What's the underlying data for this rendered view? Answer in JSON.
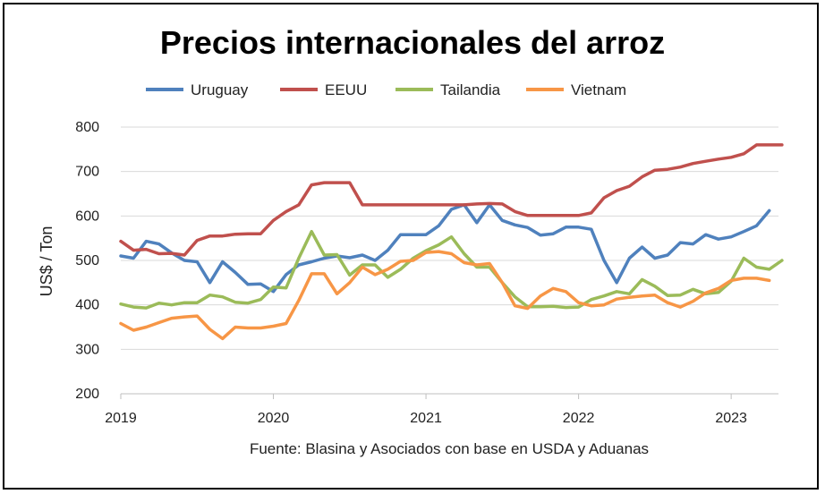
{
  "chart_data": {
    "type": "line",
    "title": "Precios internacionales del arroz",
    "ylabel": "US$ / Ton",
    "xlabel": "",
    "source_note": "Fuente: Blasina y Asociados con base en USDA y Aduanas",
    "ylim": [
      200,
      800
    ],
    "yticks": [
      200,
      300,
      400,
      500,
      600,
      700,
      800
    ],
    "xlim": [
      2019.0,
      2023.31
    ],
    "xticks": [
      2019,
      2020,
      2021,
      2022,
      2023
    ],
    "xtick_labels": [
      "2019",
      "2020",
      "2021",
      "2022",
      "2023"
    ],
    "grid": true,
    "legend_position": "top",
    "x_start": 2019.0,
    "x_step": 0.08333,
    "series": [
      {
        "name": "Uruguay",
        "color": "#4F81BD",
        "values": [
          510,
          505,
          543,
          537,
          517,
          500,
          497,
          450,
          497,
          473,
          446,
          447,
          430,
          468,
          490,
          497,
          505,
          510,
          506,
          512,
          500,
          523,
          558,
          558,
          558,
          578,
          615,
          625,
          585,
          625,
          590,
          580,
          574,
          557,
          560,
          575,
          575,
          570,
          500,
          450,
          505,
          530,
          505,
          512,
          540,
          537,
          558,
          548,
          553,
          565,
          578,
          612
        ]
      },
      {
        "name": "EEUU",
        "color": "#C0504D",
        "values": [
          543,
          523,
          525,
          515,
          516,
          512,
          545,
          555,
          555,
          559,
          560,
          560,
          590,
          610,
          625,
          670,
          675,
          675,
          675,
          625,
          625,
          625,
          625,
          625,
          625,
          625,
          625,
          625,
          627,
          628,
          627,
          610,
          601,
          601,
          601,
          601,
          601,
          607,
          641,
          657,
          667,
          688,
          703,
          705,
          710,
          718,
          723,
          728,
          732,
          740,
          760,
          760,
          760
        ]
      },
      {
        "name": "Tailandia",
        "color": "#9BBB59",
        "values": [
          402,
          395,
          393,
          404,
          400,
          405,
          405,
          422,
          418,
          406,
          404,
          412,
          440,
          438,
          505,
          565,
          512,
          513,
          467,
          490,
          490,
          462,
          480,
          505,
          522,
          535,
          553,
          515,
          485,
          485,
          450,
          418,
          396,
          396,
          397,
          394,
          395,
          412,
          420,
          430,
          425,
          457,
          442,
          421,
          422,
          435,
          425,
          428,
          453,
          505,
          485,
          480,
          500
        ]
      },
      {
        "name": "Vietnam",
        "color": "#F79646",
        "values": [
          358,
          343,
          350,
          360,
          370,
          373,
          375,
          345,
          324,
          350,
          348,
          348,
          352,
          358,
          410,
          470,
          470,
          425,
          450,
          485,
          468,
          480,
          498,
          500,
          518,
          520,
          515,
          495,
          490,
          493,
          450,
          398,
          392,
          420,
          437,
          430,
          405,
          398,
          400,
          413,
          417,
          420,
          422,
          405,
          395,
          408,
          427,
          437,
          455,
          460,
          460,
          455
        ]
      }
    ]
  }
}
